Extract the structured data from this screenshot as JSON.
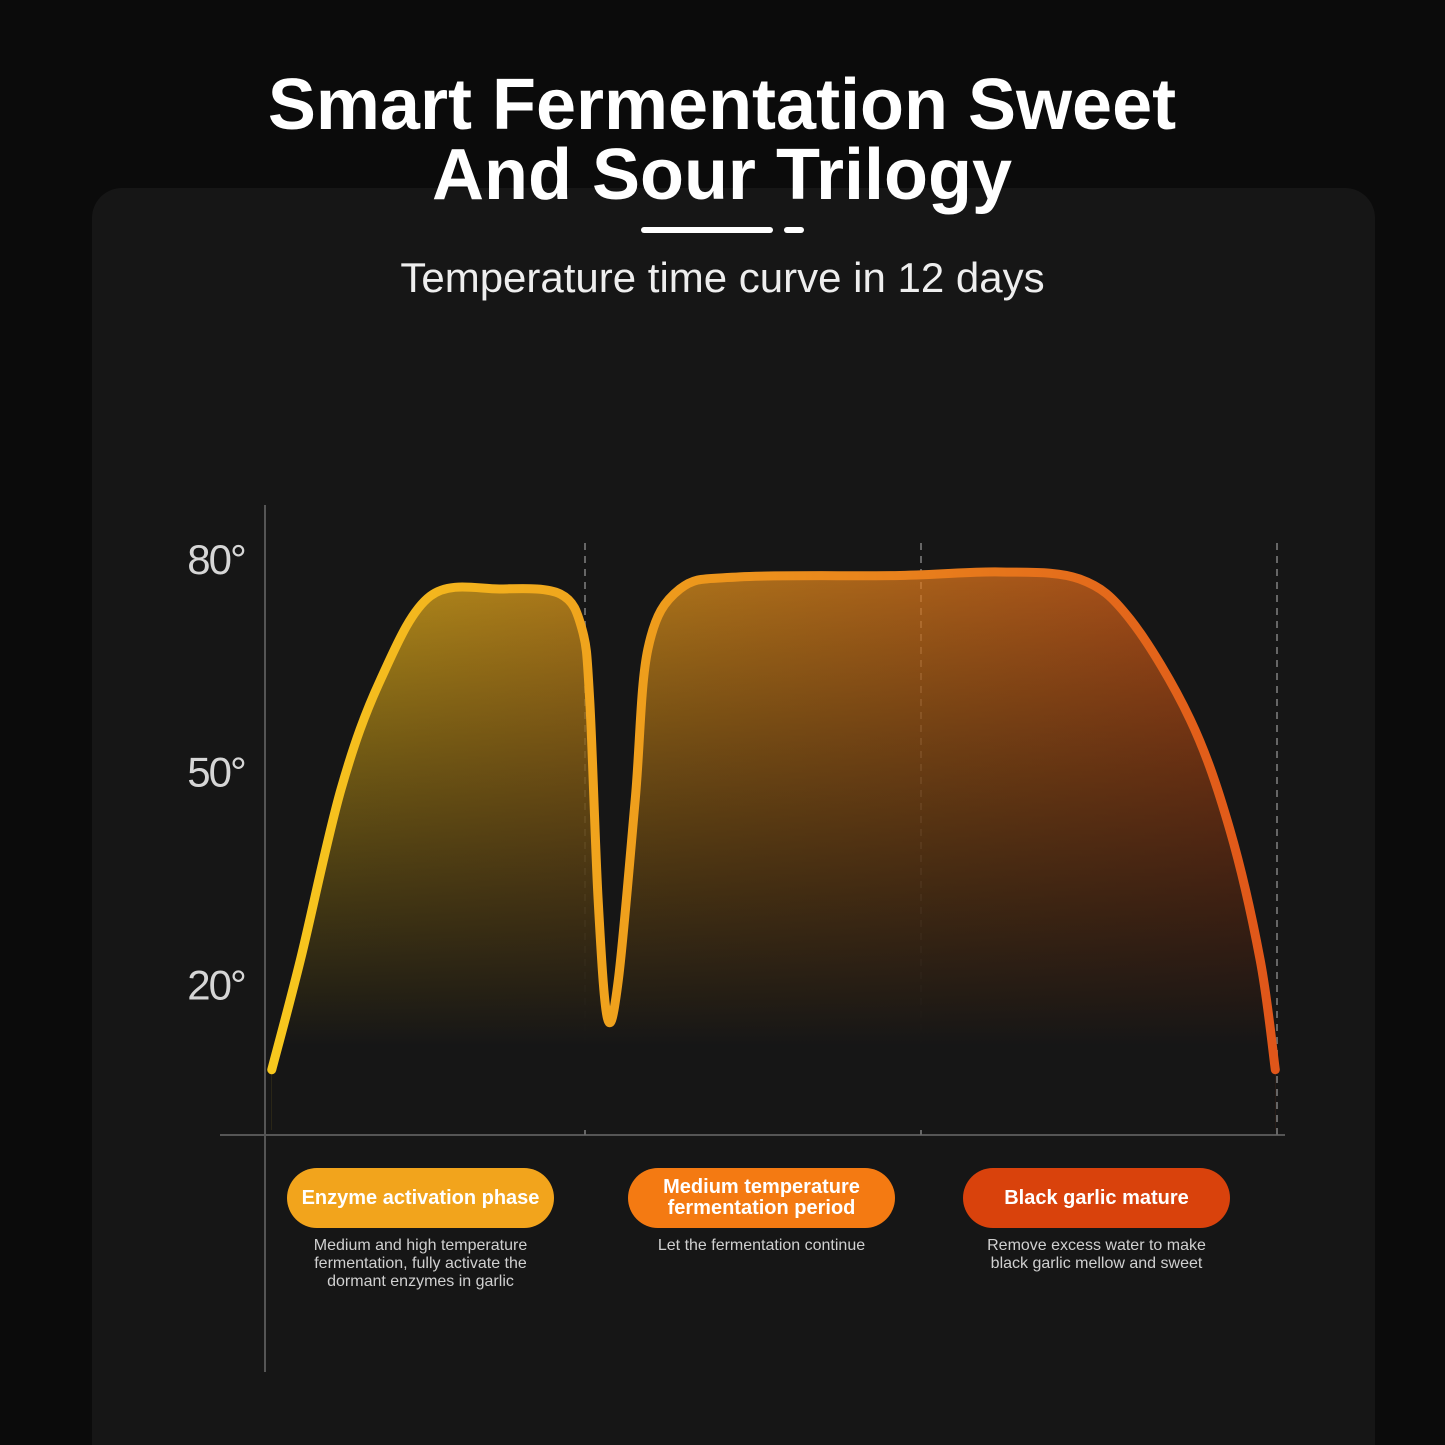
{
  "chart_data": {
    "type": "line",
    "title": "Smart Fermentation Sweet And Sour Trilogy",
    "subtitle": "Temperature time curve in 12 days",
    "x": [
      0.08,
      0.42,
      0.9,
      1.37,
      1.96,
      2.79,
      3.5,
      3.76,
      3.85,
      3.95,
      4.06,
      4.19,
      4.39,
      4.54,
      4.92,
      5.63,
      7.53,
      8.72,
      9.66,
      10.26,
      10.97,
      11.44,
      11.8,
      11.98
    ],
    "values": [
      8.5,
      24,
      48,
      63.5,
      75.3,
      76.3,
      75.6,
      70.6,
      60.7,
      32.5,
      15.8,
      21.2,
      46.6,
      67.8,
      76.3,
      78,
      78.2,
      78.7,
      77.7,
      72,
      57.9,
      42.4,
      24,
      8.5
    ],
    "xlim": [
      0,
      12
    ],
    "ylim": [
      0,
      88
    ],
    "yticks": [
      {
        "value": 20,
        "label": "20°"
      },
      {
        "value": 50,
        "label": "50°"
      },
      {
        "value": 80,
        "label": "80°"
      }
    ],
    "colors": [
      "#f7c81e",
      "#e0561a"
    ],
    "phases": [
      {
        "name": "Enzyme activation phase",
        "description": "Medium and high temperature fermentation, fully activate the dormant enzymes in garlic",
        "color": "#f2a41c"
      },
      {
        "name": "Medium temperature fermentation period",
        "description": "Let the fermentation continue",
        "color": "#f47a12"
      },
      {
        "name": "Black garlic mature",
        "description": "Remove excess water to make black garlic mellow and sweet",
        "color": "#d9420c"
      }
    ]
  }
}
